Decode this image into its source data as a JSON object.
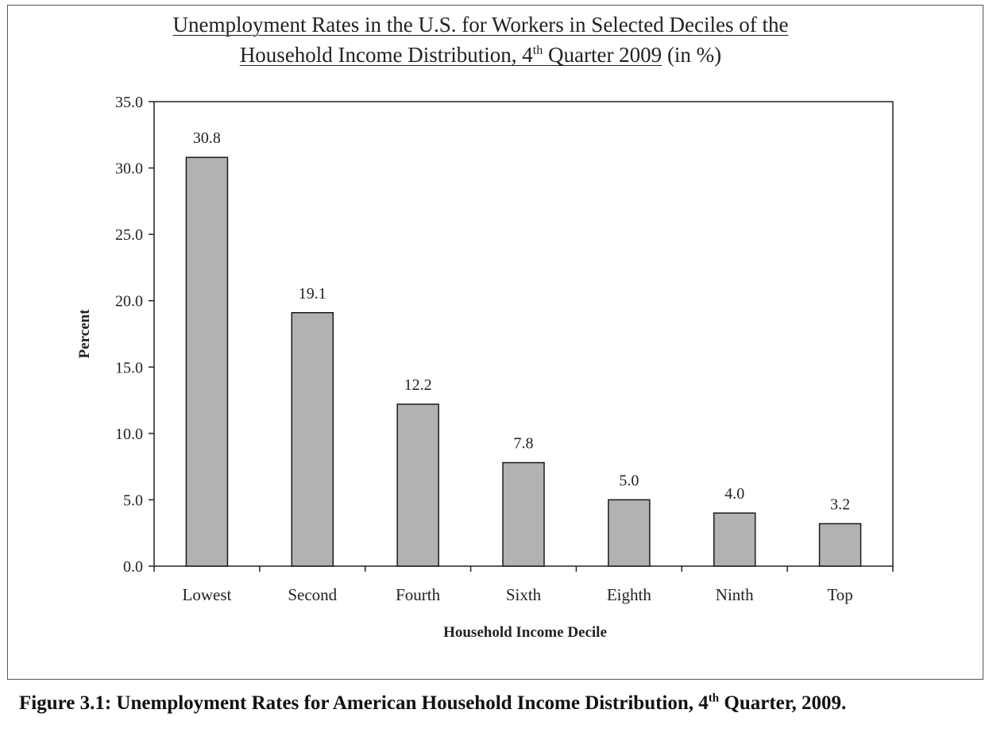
{
  "title": {
    "line1": "Unemployment Rates in the U.S. for Workers in Selected Deciles of the",
    "line2_main": "Household Income Distribution, 4",
    "line2_sup": "th",
    "line2_rest": " Quarter 2009",
    "line2_suffix": " (in %)"
  },
  "caption": {
    "main": "Figure 3.1: Unemployment Rates for American Household Income Distribution, 4",
    "sup": "th",
    "rest": " Quarter, 2009."
  },
  "colors": {
    "bar": "#b2b2b2",
    "bar_stroke": "#1a1a1a",
    "axis": "#222222"
  },
  "chart_data": {
    "type": "bar",
    "categories": [
      "Lowest",
      "Second",
      "Fourth",
      "Sixth",
      "Eighth",
      "Ninth",
      "Top"
    ],
    "values": [
      30.8,
      19.1,
      12.2,
      7.8,
      5.0,
      4.0,
      3.2
    ],
    "data_labels": [
      "30.8",
      "19.1",
      "12.2",
      "7.8",
      "5.0",
      "4.0",
      "3.2"
    ],
    "xlabel": "Household Income Decile",
    "ylabel": "Percent",
    "ylim": [
      0,
      35
    ],
    "yticks": [
      0,
      5,
      10,
      15,
      20,
      25,
      30,
      35
    ],
    "ytick_labels": [
      "0.0",
      "5.0",
      "10.0",
      "15.0",
      "20.0",
      "25.0",
      "30.0",
      "35.0"
    ],
    "grid": false,
    "legend": "none"
  }
}
